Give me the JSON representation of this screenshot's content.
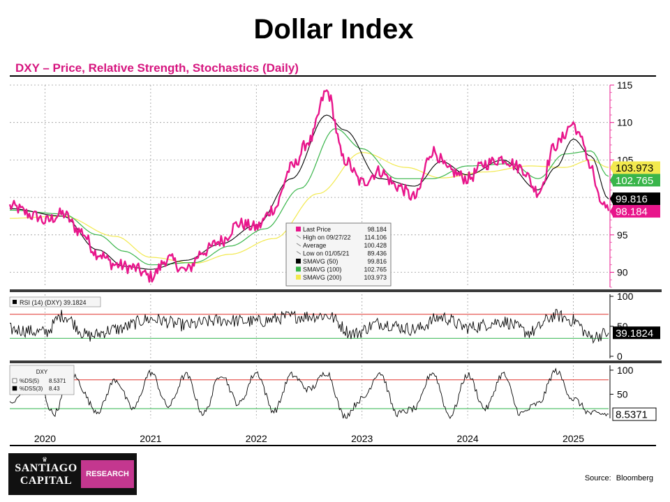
{
  "header": {
    "title": "Dollar Index",
    "subtitle": "DXY – Price, Relative Strength, Stochastics (Daily)"
  },
  "footer": {
    "logo_line1": "SANTIAGO",
    "logo_line2": "CAPITAL",
    "logo_badge": "RESEARCH",
    "source_label": "Source:",
    "source_name": "Bloomberg"
  },
  "colors": {
    "price": "#e8158b",
    "sma50": "#000000",
    "sma100": "#39b54a",
    "sma200": "#f2e94e",
    "rsi_line": "#000000",
    "upper_band": "#e0322c",
    "lower_band": "#2fb34a",
    "accent": "#d6157f"
  },
  "chart_data": {
    "type": "line",
    "x_ticks": [
      "2020",
      "2021",
      "2022",
      "2023",
      "2024",
      "2025"
    ],
    "x_range": [
      "2019-09",
      "2025-05"
    ],
    "panels": [
      {
        "name": "price",
        "ylim": [
          88,
          115
        ],
        "yticks": [
          90,
          95,
          100,
          105,
          110,
          115
        ],
        "series": [
          {
            "name": "Last Price",
            "key": "price",
            "type": "price",
            "x": [
              "2019-09",
              "2019-12",
              "2020-01",
              "2020-03",
              "2020-05",
              "2020-07",
              "2020-09",
              "2020-11",
              "2021-01",
              "2021-03",
              "2021-05",
              "2021-07",
              "2021-09",
              "2021-11",
              "2022-01",
              "2022-03",
              "2022-05",
              "2022-07",
              "2022-09",
              "2022-11",
              "2023-01",
              "2023-03",
              "2023-05",
              "2023-07",
              "2023-09",
              "2023-11",
              "2024-01",
              "2024-03",
              "2024-05",
              "2024-07",
              "2024-09",
              "2024-11",
              "2025-01",
              "2025-02",
              "2025-03",
              "2025-04",
              "2025-05"
            ],
            "values": [
              98.8,
              97.5,
              96.8,
              97.8,
              95.5,
              92.5,
              91.0,
              90.6,
              89.4,
              91.8,
              90.2,
              92.8,
              94.2,
              96.5,
              96.0,
              98.5,
              104.0,
              107.5,
              114.1,
              105.0,
              102.0,
              103.5,
              101.5,
              100.0,
              106.2,
              103.5,
              102.5,
              104.5,
              105.2,
              104.0,
              100.8,
              107.0,
              109.8,
              107.5,
              104.0,
              99.5,
              98.2
            ]
          },
          {
            "name": "SMAVG (50)",
            "key": "sma50",
            "type": "sma",
            "x": [
              "2019-09",
              "2020-03",
              "2020-07",
              "2020-10",
              "2021-01",
              "2021-05",
              "2021-09",
              "2022-01",
              "2022-05",
              "2022-09",
              "2022-11",
              "2023-03",
              "2023-07",
              "2023-10",
              "2024-01",
              "2024-05",
              "2024-09",
              "2024-11",
              "2025-01",
              "2025-03",
              "2025-05"
            ],
            "values": [
              98.5,
              97.5,
              93.0,
              90.8,
              90.4,
              91.6,
              93.8,
              96.3,
              102.5,
              111.0,
              109.0,
              102.5,
              101.5,
              104.8,
              103.0,
              105.0,
              101.0,
              104.0,
              107.8,
              105.5,
              99.8
            ]
          },
          {
            "name": "SMAVG (100)",
            "key": "sma100",
            "type": "sma",
            "x": [
              "2019-09",
              "2020-03",
              "2020-07",
              "2020-10",
              "2021-01",
              "2021-06",
              "2021-10",
              "2022-02",
              "2022-06",
              "2022-10",
              "2023-01",
              "2023-05",
              "2023-09",
              "2024-01",
              "2024-06",
              "2024-09",
              "2024-12",
              "2025-03",
              "2025-05"
            ],
            "values": [
              98.3,
              97.8,
              95.0,
              92.8,
              91.0,
              91.3,
              93.5,
              95.8,
              101.2,
              109.2,
              106.5,
              102.5,
              102.5,
              104.2,
              104.5,
              102.5,
              105.8,
              106.2,
              102.8
            ]
          },
          {
            "name": "SMAVG (200)",
            "key": "sma200",
            "type": "sma",
            "x": [
              "2019-09",
              "2020-03",
              "2020-09",
              "2021-01",
              "2021-06",
              "2021-10",
              "2022-03",
              "2022-08",
              "2023-01",
              "2023-06",
              "2023-10",
              "2024-03",
              "2024-08",
              "2024-12",
              "2025-03",
              "2025-05"
            ],
            "values": [
              97.2,
              97.5,
              94.8,
              92.0,
              91.2,
              92.4,
              94.5,
              100.5,
              106.0,
              104.0,
              102.6,
              103.4,
              104.2,
              104.0,
              105.0,
              104.0
            ]
          }
        ],
        "value_labels": [
          {
            "text": "103.973",
            "key": "sma200"
          },
          {
            "text": "102.765",
            "key": "sma100"
          },
          {
            "text": "99.816",
            "key": "sma50"
          },
          {
            "text": "98.184",
            "key": "price"
          }
        ],
        "legend": {
          "position": "bottom-center",
          "rows": [
            {
              "label": "Last Price",
              "value": "98.184",
              "swatch": "#e8158b"
            },
            {
              "label": "High on 09/27/22",
              "value": "114.106",
              "swatch": "none"
            },
            {
              "label": "Average",
              "value": "100.428",
              "swatch": "none"
            },
            {
              "label": "Low on 01/05/21",
              "value": "89.436",
              "swatch": "none"
            },
            {
              "label": "SMAVG (50)",
              "value": "99.816",
              "swatch": "#000000"
            },
            {
              "label": "SMAVG (100)",
              "value": "102.765",
              "swatch": "#39b54a"
            },
            {
              "label": "SMAVG (200)",
              "value": "103.973",
              "swatch": "#f2e94e"
            }
          ]
        }
      },
      {
        "name": "rsi",
        "legend": "RSI (14) (DXY) 39.1824",
        "ylim": [
          0,
          100
        ],
        "yticks": [
          0,
          50,
          100
        ],
        "bands": [
          70,
          30
        ],
        "last_value_label": "39.1824",
        "series": [
          {
            "name": "RSI (14)",
            "x": [
              "2019-09",
              "2020-01",
              "2020-03",
              "2020-06",
              "2020-09",
              "2021-01",
              "2021-05",
              "2021-09",
              "2022-01",
              "2022-05",
              "2022-09",
              "2022-12",
              "2023-03",
              "2023-07",
              "2023-10",
              "2024-01",
              "2024-05",
              "2024-08",
              "2024-11",
              "2025-01",
              "2025-03",
              "2025-05"
            ],
            "values": [
              45,
              40,
              68,
              34,
              45,
              62,
              52,
              60,
              58,
              66,
              68,
              38,
              55,
              45,
              65,
              48,
              58,
              40,
              68,
              60,
              32,
              39
            ]
          }
        ]
      },
      {
        "name": "stochastics",
        "legend_title": "DXY",
        "legend_rows": [
          {
            "label": "%DS(5)",
            "value": "8.5371"
          },
          {
            "label": "%DSS(3)",
            "value": "8.43"
          }
        ],
        "ylim": [
          0,
          110
        ],
        "yticks": [
          50,
          100
        ],
        "bands": [
          80,
          20
        ],
        "last_value_label": "8.5371",
        "series": [
          {
            "name": "%DS(5)",
            "x": [
              "2019-09",
              "2019-12",
              "2020-02",
              "2020-04",
              "2020-07",
              "2020-09",
              "2020-11",
              "2021-01",
              "2021-03",
              "2021-05",
              "2021-07",
              "2021-09",
              "2021-11",
              "2022-01",
              "2022-03",
              "2022-05",
              "2022-07",
              "2022-09",
              "2022-11",
              "2023-01",
              "2023-03",
              "2023-05",
              "2023-07",
              "2023-09",
              "2023-11",
              "2024-01",
              "2024-03",
              "2024-05",
              "2024-07",
              "2024-09",
              "2024-11",
              "2025-01",
              "2025-03",
              "2025-05"
            ],
            "values": [
              30,
              85,
              10,
              90,
              15,
              80,
              20,
              95,
              25,
              90,
              10,
              92,
              30,
              95,
              15,
              90,
              60,
              95,
              5,
              40,
              95,
              10,
              20,
              95,
              5,
              90,
              20,
              92,
              10,
              30,
              98,
              40,
              10,
              8.5
            ]
          }
        ]
      }
    ]
  }
}
